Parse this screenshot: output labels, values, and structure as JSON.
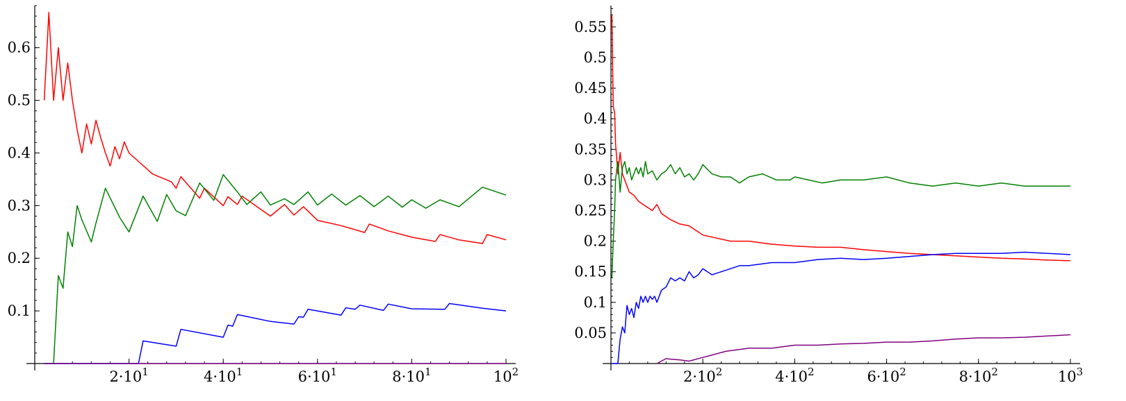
{
  "chart_data": [
    {
      "type": "line",
      "x_ticks": [
        {
          "value": 20,
          "label": "2·10",
          "exp": "1"
        },
        {
          "value": 40,
          "label": "4·10",
          "exp": "1"
        },
        {
          "value": 60,
          "label": "6·10",
          "exp": "1"
        },
        {
          "value": 80,
          "label": "8·10",
          "exp": "1"
        },
        {
          "value": 100,
          "label": "10",
          "exp": "2"
        }
      ],
      "y_ticks": [
        {
          "value": 0.1,
          "label": "0.1"
        },
        {
          "value": 0.2,
          "label": "0.2"
        },
        {
          "value": 0.3,
          "label": "0.3"
        },
        {
          "value": 0.4,
          "label": "0.4"
        },
        {
          "value": 0.5,
          "label": "0.5"
        },
        {
          "value": 0.6,
          "label": "0.6"
        }
      ],
      "xlim": [
        0,
        100
      ],
      "ylim": [
        0,
        0.68
      ],
      "series": [
        {
          "color": "#ff0000",
          "x": [
            2,
            3,
            4,
            5,
            6,
            7,
            8,
            9,
            10,
            11,
            12,
            13,
            14,
            15,
            16,
            17,
            18,
            19,
            20,
            25,
            29,
            30,
            31,
            35,
            36,
            40,
            41,
            43,
            44,
            50,
            53,
            55,
            57,
            60,
            65,
            70,
            71,
            75,
            80,
            85,
            86,
            90,
            95,
            96,
            100
          ],
          "y": [
            0.5,
            0.667,
            0.5,
            0.6,
            0.5,
            0.571,
            0.5,
            0.444,
            0.4,
            0.455,
            0.417,
            0.462,
            0.429,
            0.4,
            0.375,
            0.412,
            0.389,
            0.421,
            0.4,
            0.36,
            0.345,
            0.333,
            0.355,
            0.314,
            0.333,
            0.3,
            0.317,
            0.302,
            0.318,
            0.28,
            0.302,
            0.282,
            0.298,
            0.272,
            0.262,
            0.249,
            0.265,
            0.252,
            0.24,
            0.232,
            0.245,
            0.235,
            0.228,
            0.245,
            0.235
          ]
        },
        {
          "color": "#008000",
          "x": [
            2,
            3,
            4,
            5,
            6,
            7,
            8,
            9,
            10,
            12,
            13,
            15,
            18,
            20,
            23,
            26,
            28,
            30,
            32,
            35,
            38,
            40,
            43,
            45,
            48,
            50,
            53,
            55,
            58,
            60,
            63,
            66,
            69,
            72,
            75,
            78,
            80,
            83,
            86,
            90,
            95,
            100
          ],
          "y": [
            0,
            0,
            0,
            0.167,
            0.143,
            0.25,
            0.222,
            0.3,
            0.273,
            0.231,
            0.267,
            0.333,
            0.278,
            0.25,
            0.318,
            0.27,
            0.321,
            0.29,
            0.281,
            0.343,
            0.31,
            0.359,
            0.326,
            0.302,
            0.326,
            0.301,
            0.313,
            0.302,
            0.326,
            0.301,
            0.322,
            0.301,
            0.319,
            0.298,
            0.318,
            0.297,
            0.311,
            0.295,
            0.311,
            0.298,
            0.335,
            0.32
          ]
        },
        {
          "color": "#0000ff",
          "x": [
            2,
            22,
            23,
            30,
            31,
            40,
            41,
            42,
            43,
            50,
            55,
            56,
            57,
            58,
            65,
            66,
            68,
            69,
            74,
            75,
            80,
            87,
            88,
            95,
            100
          ],
          "y": [
            0,
            0,
            0.043,
            0.033,
            0.065,
            0.05,
            0.073,
            0.071,
            0.093,
            0.08,
            0.075,
            0.089,
            0.088,
            0.103,
            0.092,
            0.106,
            0.103,
            0.111,
            0.101,
            0.113,
            0.104,
            0.103,
            0.114,
            0.105,
            0.1
          ]
        },
        {
          "color": "#800080",
          "x": [
            2,
            100
          ],
          "y": [
            0,
            0
          ]
        }
      ]
    },
    {
      "type": "line",
      "x_ticks": [
        {
          "value": 200,
          "label": "2·10",
          "exp": "2"
        },
        {
          "value": 400,
          "label": "4·10",
          "exp": "2"
        },
        {
          "value": 600,
          "label": "6·10",
          "exp": "2"
        },
        {
          "value": 800,
          "label": "8·10",
          "exp": "2"
        },
        {
          "value": 1000,
          "label": "10",
          "exp": "3"
        }
      ],
      "y_ticks": [
        {
          "value": 0.05,
          "label": "0.05"
        },
        {
          "value": 0.1,
          "label": "0.1"
        },
        {
          "value": 0.15,
          "label": "0.15"
        },
        {
          "value": 0.2,
          "label": "0.2"
        },
        {
          "value": 0.25,
          "label": "0.25"
        },
        {
          "value": 0.3,
          "label": "0.3"
        },
        {
          "value": 0.35,
          "label": "0.35"
        },
        {
          "value": 0.4,
          "label": "0.4"
        },
        {
          "value": 0.45,
          "label": "0.45"
        },
        {
          "value": 0.5,
          "label": "0.5"
        },
        {
          "value": 0.55,
          "label": "0.55"
        }
      ],
      "xlim": [
        0,
        1000
      ],
      "ylim": [
        0,
        0.585
      ],
      "series": [
        {
          "color": "#ff0000",
          "x": [
            2,
            5,
            8,
            10,
            13,
            15,
            20,
            25,
            30,
            40,
            50,
            60,
            70,
            80,
            90,
            100,
            110,
            130,
            150,
            170,
            200,
            230,
            260,
            300,
            350,
            400,
            450,
            500,
            550,
            600,
            650,
            700,
            750,
            800,
            850,
            900,
            950,
            1000
          ],
          "y": [
            0.57,
            0.42,
            0.41,
            0.36,
            0.33,
            0.31,
            0.345,
            0.31,
            0.3,
            0.28,
            0.275,
            0.265,
            0.26,
            0.255,
            0.25,
            0.26,
            0.245,
            0.235,
            0.228,
            0.225,
            0.21,
            0.205,
            0.2,
            0.2,
            0.195,
            0.192,
            0.19,
            0.19,
            0.186,
            0.183,
            0.18,
            0.178,
            0.176,
            0.174,
            0.172,
            0.171,
            0.169,
            0.168
          ]
        },
        {
          "color": "#008000",
          "x": [
            2,
            5,
            8,
            10,
            13,
            15,
            20,
            25,
            30,
            35,
            40,
            45,
            50,
            55,
            60,
            65,
            70,
            75,
            80,
            90,
            100,
            110,
            120,
            130,
            140,
            150,
            160,
            170,
            180,
            190,
            200,
            220,
            240,
            260,
            280,
            300,
            330,
            360,
            390,
            400,
            430,
            460,
            500,
            550,
            600,
            650,
            700,
            750,
            800,
            850,
            900,
            950,
            1000
          ],
          "y": [
            0.14,
            0.2,
            0.25,
            0.3,
            0.32,
            0.33,
            0.28,
            0.32,
            0.33,
            0.31,
            0.32,
            0.3,
            0.31,
            0.32,
            0.31,
            0.32,
            0.305,
            0.33,
            0.31,
            0.315,
            0.3,
            0.31,
            0.315,
            0.325,
            0.31,
            0.32,
            0.305,
            0.31,
            0.3,
            0.31,
            0.325,
            0.31,
            0.305,
            0.305,
            0.295,
            0.305,
            0.31,
            0.3,
            0.3,
            0.305,
            0.3,
            0.295,
            0.3,
            0.3,
            0.305,
            0.295,
            0.29,
            0.295,
            0.29,
            0.295,
            0.29,
            0.29,
            0.29
          ]
        },
        {
          "color": "#0000ff",
          "x": [
            2,
            15,
            20,
            25,
            30,
            35,
            40,
            45,
            50,
            55,
            60,
            65,
            70,
            75,
            80,
            85,
            90,
            95,
            100,
            110,
            120,
            130,
            140,
            150,
            160,
            170,
            180,
            190,
            200,
            220,
            240,
            260,
            280,
            300,
            350,
            400,
            450,
            500,
            550,
            600,
            650,
            700,
            750,
            800,
            850,
            900,
            950,
            1000
          ],
          "y": [
            0,
            0,
            0.04,
            0.06,
            0.05,
            0.095,
            0.08,
            0.09,
            0.075,
            0.1,
            0.09,
            0.11,
            0.1,
            0.11,
            0.1,
            0.11,
            0.105,
            0.11,
            0.1,
            0.12,
            0.125,
            0.14,
            0.135,
            0.14,
            0.135,
            0.15,
            0.14,
            0.145,
            0.155,
            0.145,
            0.15,
            0.155,
            0.16,
            0.16,
            0.165,
            0.165,
            0.17,
            0.172,
            0.17,
            0.172,
            0.175,
            0.178,
            0.18,
            0.18,
            0.18,
            0.182,
            0.18,
            0.178
          ]
        },
        {
          "color": "#800080",
          "x": [
            100,
            120,
            130,
            150,
            160,
            170,
            200,
            250,
            300,
            350,
            400,
            450,
            500,
            550,
            600,
            650,
            700,
            750,
            800,
            850,
            900,
            950,
            1000
          ],
          "y": [
            0,
            0.008,
            0.007,
            0.006,
            0.005,
            0.004,
            0.01,
            0.02,
            0.025,
            0.025,
            0.03,
            0.03,
            0.032,
            0.033,
            0.035,
            0.035,
            0.037,
            0.04,
            0.042,
            0.042,
            0.043,
            0.045,
            0.047
          ]
        }
      ]
    }
  ]
}
